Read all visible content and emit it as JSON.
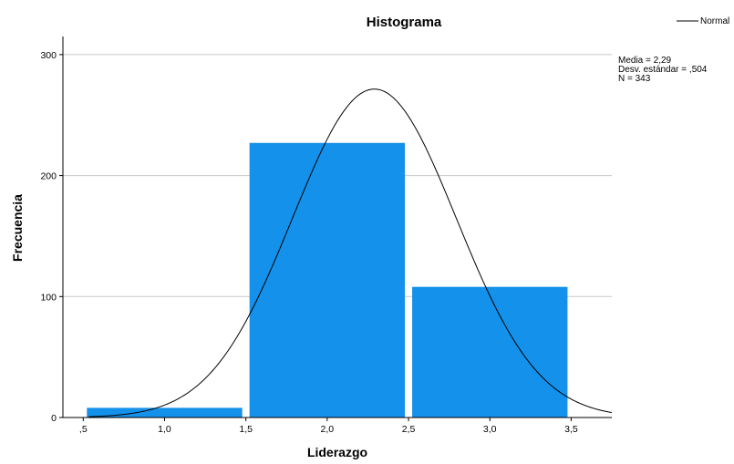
{
  "chart_data": {
    "type": "bar",
    "title": "Histograma",
    "xlabel": "Liderazgo",
    "ylabel": "Frecuencia",
    "xlim": [
      0.375,
      3.75
    ],
    "ylim": [
      0,
      315
    ],
    "x_ticks": [
      0.5,
      1.0,
      1.5,
      2.0,
      2.5,
      3.0,
      3.5
    ],
    "x_tick_labels": [
      ",5",
      "1,0",
      "1,5",
      "2,0",
      "2,5",
      "3,0",
      "3,5"
    ],
    "y_ticks": [
      0,
      100,
      200,
      300
    ],
    "y_tick_labels": [
      "0",
      "100",
      "200",
      "300"
    ],
    "grid": "horizontal",
    "bins": [
      {
        "from": 0.5,
        "to": 1.5,
        "frequency": 8
      },
      {
        "from": 1.5,
        "to": 2.5,
        "frequency": 227
      },
      {
        "from": 2.5,
        "to": 3.5,
        "frequency": 108
      }
    ],
    "bar_color": "#1491ea",
    "normal_curve": {
      "mean": 2.29,
      "sd": 0.504,
      "n": 343,
      "bin_width": 1.0,
      "color": "#000000"
    },
    "legend": {
      "label": "Normal",
      "placement": "top-right"
    },
    "stats_lines": [
      "Media = 2,29",
      "Desv. estándar = ,504",
      "N = 343"
    ]
  }
}
